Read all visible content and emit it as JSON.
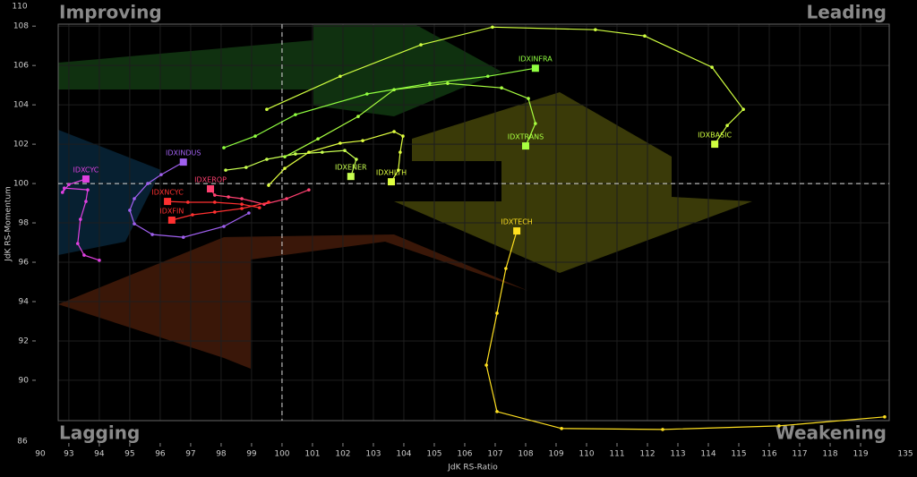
{
  "chart_data": {
    "type": "line",
    "quadrant_labels": {
      "top_left": "Improving",
      "top_right": "Leading",
      "bottom_left": "Lagging",
      "bottom_right": "Weakening"
    },
    "x_label": "JdK RS-Ratio",
    "y_label": "JdK RS-Momentum",
    "xlim": [
      92.65,
      119.94
    ],
    "ylim": [
      87.95,
      108.1
    ],
    "xticks": [
      93,
      94,
      95,
      96,
      97,
      98,
      99,
      100,
      101,
      102,
      103,
      104,
      105,
      106,
      107,
      108,
      109,
      110,
      111,
      112,
      113,
      114,
      115,
      116,
      117,
      118,
      119
    ],
    "yticks": [
      90,
      92,
      94,
      96,
      98,
      100,
      102,
      104,
      106,
      108
    ],
    "x_break_labels": [
      90,
      135
    ],
    "y_break_labels": [
      110,
      86
    ],
    "reference": 100,
    "grid": true,
    "series": [
      {
        "name": "IDXCYC",
        "color": "#e040e0",
        "x": [
          94.0,
          93.5,
          93.29,
          93.38,
          93.56,
          93.62,
          92.85,
          92.79,
          93.0,
          93.56
        ],
        "values": [
          96.1,
          96.36,
          96.95,
          98.18,
          99.09,
          99.68,
          99.77,
          99.55,
          99.95,
          100.23
        ]
      },
      {
        "name": "IDXINDUS",
        "color": "#a060f0",
        "x": [
          98.91,
          98.09,
          96.76,
          95.74,
          95.15,
          95.0,
          95.15,
          95.59,
          96.03,
          96.76
        ],
        "values": [
          98.5,
          97.82,
          97.27,
          97.41,
          97.95,
          98.64,
          99.23,
          100,
          100.45,
          101.09
        ]
      },
      {
        "name": "IDXEROP",
        "color": "#ff4070",
        "x": [
          100.88,
          100.15,
          99.41,
          98.68,
          98.24,
          97.79,
          97.65
        ],
        "values": [
          99.68,
          99.23,
          98.95,
          99.23,
          99.32,
          99.41,
          99.73
        ]
      },
      {
        "name": "IDXNCYC",
        "color": "#ff3030",
        "x": [
          99.26,
          98.68,
          97.79,
          96.91,
          96.24
        ],
        "values": [
          98.77,
          98.95,
          99.05,
          99.05,
          99.09
        ]
      },
      {
        "name": "IDXFIN",
        "color": "#ff3030",
        "x": [
          99.56,
          98.68,
          97.79,
          97.06,
          96.38
        ],
        "values": [
          99.05,
          98.73,
          98.55,
          98.41,
          98.14
        ]
      },
      {
        "name": "IDXENER",
        "color": "#c8ff50",
        "x": [
          98.15,
          98.82,
          99.5,
          100.44,
          101.32,
          102.06,
          102.44,
          102.26
        ],
        "values": [
          100.68,
          100.82,
          101.23,
          101.5,
          101.59,
          101.68,
          101.23,
          100.36
        ]
      },
      {
        "name": "IDXHLTH",
        "color": "#e0ff40",
        "x": [
          99.56,
          100.09,
          100.88,
          101.91,
          102.65,
          103.68,
          103.97,
          103.88,
          103.82,
          103.59
        ],
        "values": [
          99.91,
          100.77,
          101.59,
          102.05,
          102.18,
          102.64,
          102.41,
          101.59,
          100.68,
          100.09
        ]
      },
      {
        "name": "IDXTRANS",
        "color": "#a8ff40",
        "x": [
          100.09,
          101.18,
          102.5,
          103.68,
          105.44,
          107.21,
          108.09,
          108.32,
          108.0
        ],
        "values": [
          101.36,
          102.27,
          103.41,
          104.77,
          105.09,
          104.86,
          104.32,
          103.05,
          101.91
        ]
      },
      {
        "name": "IDXINFRA",
        "color": "#90ff40",
        "x": [
          98.09,
          99.12,
          100.44,
          102.79,
          104.85,
          106.76,
          108.32
        ],
        "values": [
          101.82,
          102.41,
          103.5,
          104.55,
          105.09,
          105.45,
          105.86
        ]
      },
      {
        "name": "IDXBASIC",
        "color": "#d0ff40",
        "x": [
          99.5,
          101.91,
          104.56,
          106.91,
          110.29,
          111.91,
          114.12,
          115.15,
          114.62,
          114.21
        ],
        "values": [
          103.77,
          105.45,
          107.05,
          107.95,
          107.82,
          107.5,
          105.91,
          103.77,
          102.95,
          102.0
        ]
      },
      {
        "name": "IDXTECH",
        "color": "#ffe020",
        "x": [
          119.79,
          116.32,
          112.5,
          109.18,
          107.06,
          106.71,
          107.06,
          107.35,
          107.71
        ],
        "values": [
          88.14,
          87.68,
          87.5,
          87.55,
          88.41,
          90.77,
          93.41,
          95.68,
          97.59
        ]
      }
    ]
  }
}
